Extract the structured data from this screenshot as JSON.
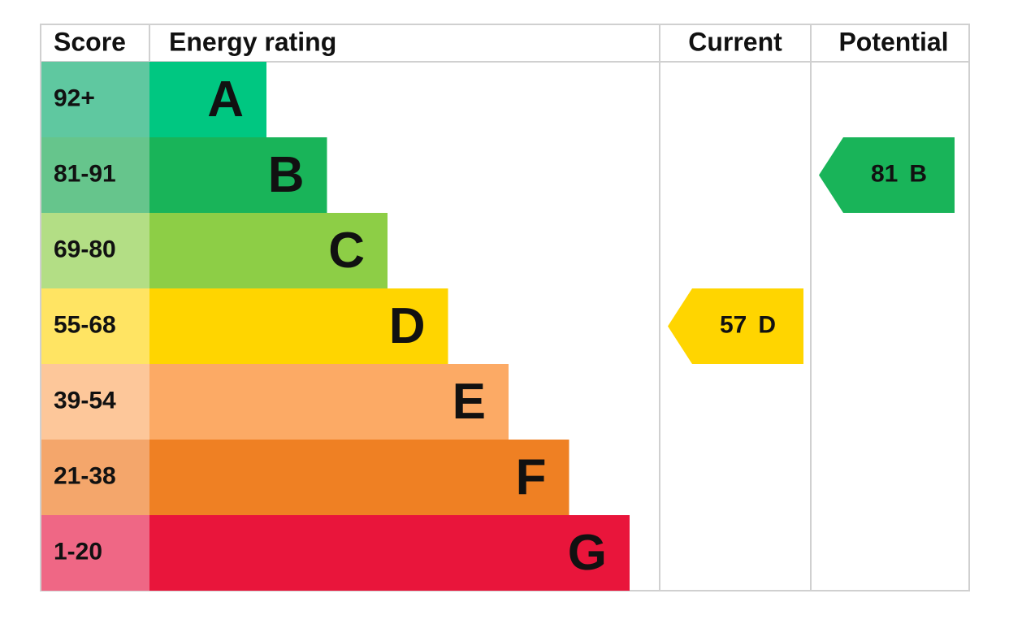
{
  "header": {
    "score": "Score",
    "rating": "Energy rating",
    "current": "Current",
    "potential": "Potential"
  },
  "bands": [
    {
      "score": "92+",
      "letter": "A",
      "color": "#00c781",
      "score_color": "#5fc8a0"
    },
    {
      "score": "81-91",
      "letter": "B",
      "color": "#19b459",
      "score_color": "#66c58c"
    },
    {
      "score": "69-80",
      "letter": "C",
      "color": "#8dce46",
      "score_color": "#b3de85"
    },
    {
      "score": "55-68",
      "letter": "D",
      "color": "#ffd500",
      "score_color": "#ffe463"
    },
    {
      "score": "39-54",
      "letter": "E",
      "color": "#fcaa65",
      "score_color": "#fdc79a"
    },
    {
      "score": "21-38",
      "letter": "F",
      "color": "#ef8023",
      "score_color": "#f4a66b"
    },
    {
      "score": "1-20",
      "letter": "G",
      "color": "#e9153b",
      "score_color": "#ef6785"
    }
  ],
  "current": {
    "score": "57",
    "letter": "D"
  },
  "potential": {
    "score": "81",
    "letter": "B"
  }
}
